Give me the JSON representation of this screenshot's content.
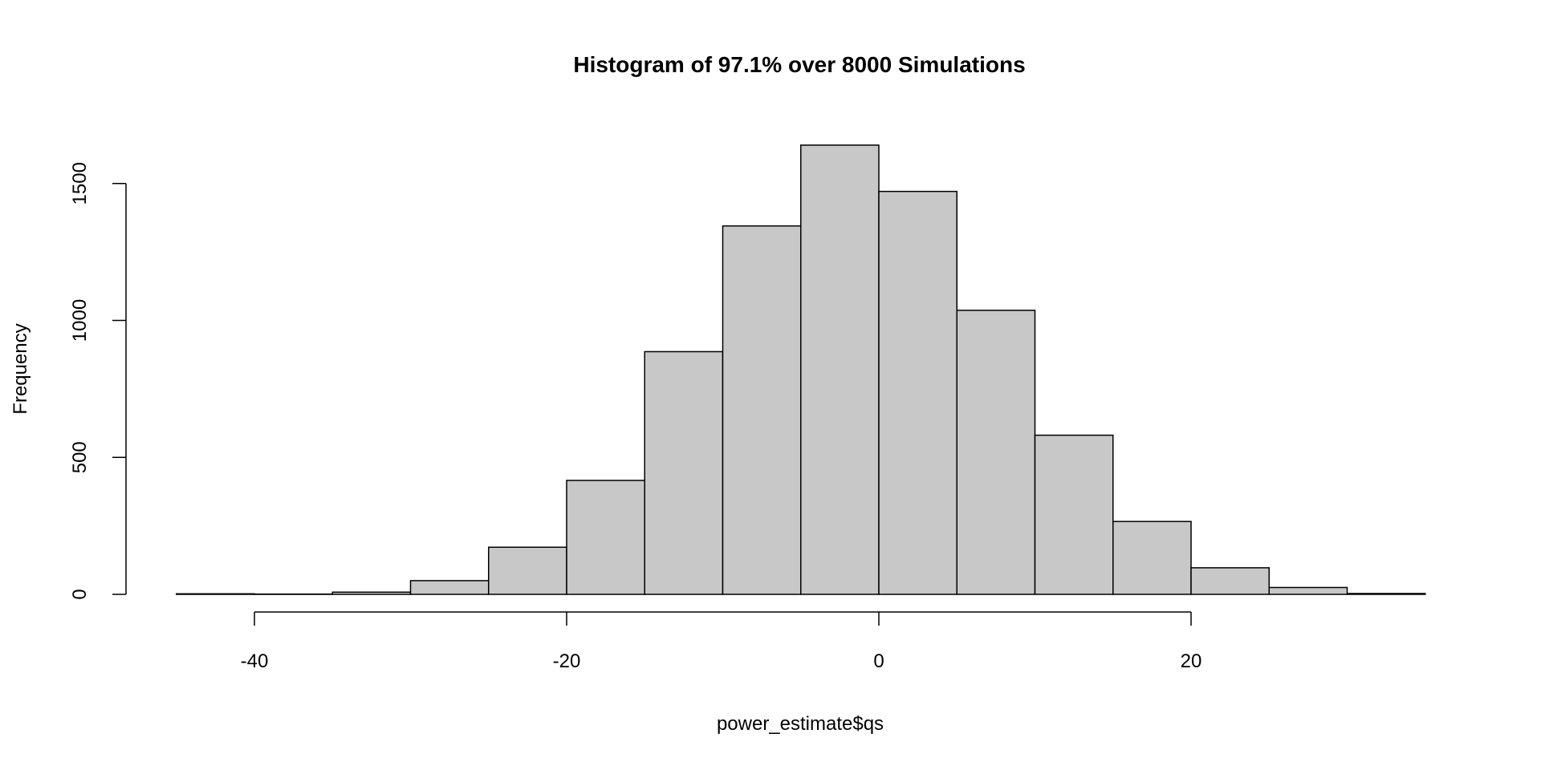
{
  "chart_data": {
    "type": "bar",
    "title": "Histogram of 97.1% over 8000 Simulations",
    "xlabel": "power_estimate$qs",
    "ylabel": "Frequency",
    "bin_edges": [
      -45,
      -40,
      -35,
      -30,
      -25,
      -20,
      -15,
      -10,
      -5,
      0,
      5,
      10,
      15,
      20,
      25,
      30,
      35
    ],
    "values": [
      2,
      1,
      8,
      50,
      172,
      416,
      886,
      1345,
      1640,
      1471,
      1037,
      581,
      266,
      97,
      25,
      3
    ],
    "x_ticks": [
      -40,
      -20,
      0,
      20
    ],
    "y_ticks": [
      0,
      500,
      1000,
      1500
    ],
    "xlim": [
      -45,
      35
    ],
    "ylim": [
      0,
      1640
    ],
    "grid": false,
    "bar_fill": "#c8c8c8",
    "bar_stroke": "#000000"
  }
}
